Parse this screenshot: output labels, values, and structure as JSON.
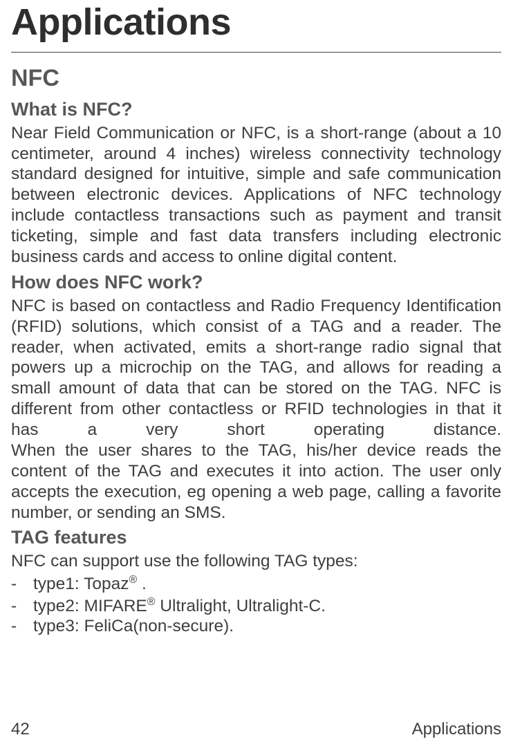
{
  "title": "Applications",
  "section_h2": "NFC",
  "sub1": {
    "heading": "What is NFC?",
    "body": "Near Field Communication or NFC, is a short-range (about a 10 centimeter, around 4 inches) wireless connectivity technology standard designed for intuitive, simple and safe communication between electronic devices. Applications of NFC technology include contactless transactions such as payment and transit ticketing, simple and fast data transfers including electronic business cards and access to online digital content."
  },
  "sub2": {
    "heading": "How does NFC work?",
    "body1": "NFC is based on contactless and Radio Frequency Identification (RFID) solutions, which consist of a TAG and a reader. The reader, when activated, emits a short-range radio signal that powers up a microchip on the TAG, and allows for reading a small amount of data that can be stored on the TAG. NFC is different from other contactless or RFID technologies in that it has a very short operating distance.",
    "body2": "When the user shares to the TAG, his/her device reads the content of the TAG and executes it into action. The user only accepts the execution, eg opening a web page, calling a favorite number, or sending an SMS."
  },
  "sub3": {
    "heading": "TAG features",
    "intro": "NFC can support use the following TAG types:",
    "items": {
      "0": "type1: Topaz® .",
      "1": "type2: MIFARE® Ultralight, Ultralight-C.",
      "2": "type3: FeliCa(non-secure)."
    }
  },
  "footer": {
    "page_number": "42",
    "section": "Applications"
  }
}
